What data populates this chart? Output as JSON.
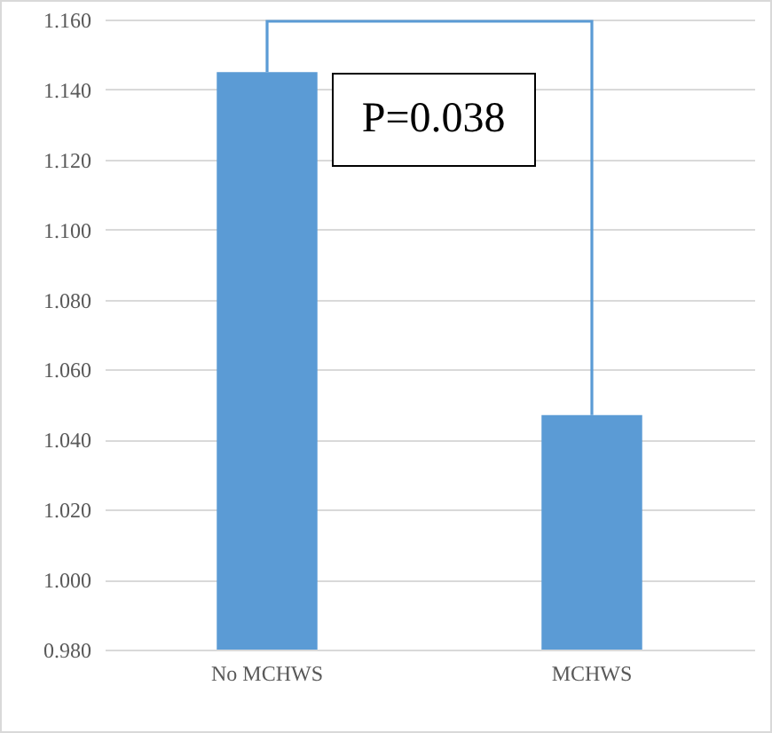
{
  "chart_data": {
    "type": "bar",
    "categories": [
      "No MCHWS",
      "MCHWS"
    ],
    "values": [
      1.145,
      1.047
    ],
    "color": "#5b9bd5",
    "ylim": [
      0.98,
      1.16
    ],
    "yticks": [
      {
        "value": 0.98,
        "label": "0.980"
      },
      {
        "value": 1.0,
        "label": "1.000"
      },
      {
        "value": 1.02,
        "label": "1.020"
      },
      {
        "value": 1.04,
        "label": "1.040"
      },
      {
        "value": 1.06,
        "label": "1.060"
      },
      {
        "value": 1.08,
        "label": "1.080"
      },
      {
        "value": 1.1,
        "label": "1.100"
      },
      {
        "value": 1.12,
        "label": "1.120"
      },
      {
        "value": 1.14,
        "label": "1.140"
      },
      {
        "value": 1.16,
        "label": "1.160"
      }
    ],
    "grid": "y",
    "annotations": [
      "P=0.038"
    ]
  }
}
